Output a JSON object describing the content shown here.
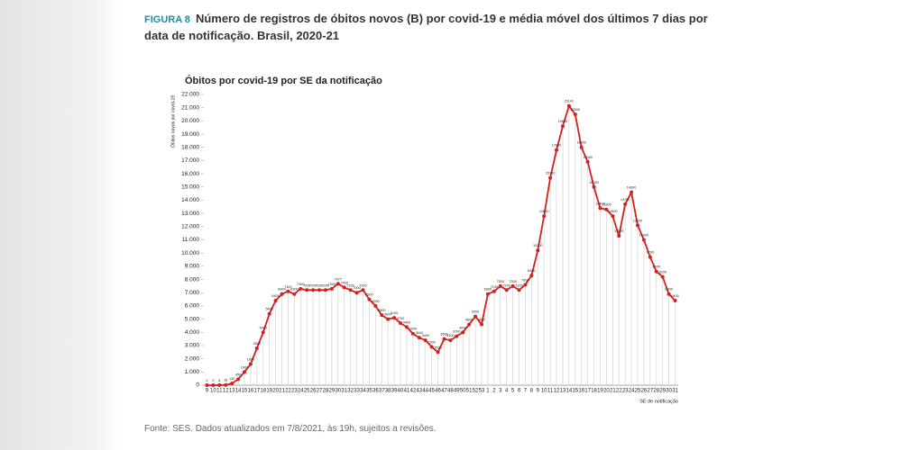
{
  "figure": {
    "label": "FIGURA 8",
    "caption": "Número de registros de óbitos novos (B) por covid-19 e média móvel dos últimos 7 dias por data de notificação. Brasil, 2020-21",
    "source": "Fonte: SES. Dados atualizados em 7/8/2021, às 19h, sujeitos a revisões."
  },
  "chart_data": {
    "type": "line",
    "title": "Óbitos por covid-19 por SE da notificação",
    "y_label": "Óbitos novos por covid-19",
    "x_label": "SE de notificação",
    "color": "#d42020",
    "grid": true,
    "categories": [
      "9",
      "10",
      "11",
      "12",
      "13",
      "14",
      "15",
      "16",
      "17",
      "18",
      "19",
      "20",
      "21",
      "22",
      "23",
      "24",
      "25",
      "26",
      "27",
      "28",
      "29",
      "30",
      "31",
      "32",
      "33",
      "34",
      "35",
      "36",
      "37",
      "38",
      "39",
      "40",
      "41",
      "42",
      "43",
      "44",
      "45",
      "46",
      "47",
      "48",
      "49",
      "50",
      "51",
      "52",
      "53",
      "1",
      "2",
      "3",
      "4",
      "5",
      "6",
      "7",
      "8",
      "9",
      "10",
      "11",
      "12",
      "13",
      "14",
      "15",
      "16",
      "17",
      "18",
      "19",
      "20",
      "21",
      "22",
      "23",
      "24",
      "25",
      "26",
      "27",
      "28",
      "29",
      "30",
      "31"
    ],
    "values": [
      0,
      0,
      6,
      18,
      130,
      450,
      1000,
      1600,
      2800,
      4000,
      5400,
      6400,
      6900,
      7100,
      6900,
      7300,
      7200,
      7200,
      7200,
      7200,
      7300,
      7677,
      7400,
      7200,
      7000,
      7200,
      6500,
      6000,
      5300,
      5000,
      5100,
      4700,
      4400,
      3900,
      3600,
      3400,
      2900,
      2500,
      3500,
      3400,
      3700,
      4000,
      4600,
      5200,
      4600,
      6900,
      7100,
      7500,
      7200,
      7500,
      7200,
      7600,
      8300,
      10200,
      12800,
      15700,
      17800,
      19600,
      21141,
      20500,
      18000,
      16900,
      15000,
      13400,
      13300,
      12800,
      11300,
      13700,
      14600,
      12100,
      11000,
      9700,
      8600,
      8200,
      6900,
      6400
    ],
    "ylim": [
      0,
      22000
    ],
    "yticks": [
      0,
      {
        "value": 1000,
        "label": "1.000"
      },
      {
        "value": 2000,
        "label": "2.000"
      },
      {
        "value": 3000,
        "label": "3.000"
      },
      {
        "value": 4000,
        "label": "4.000"
      },
      {
        "value": 5000,
        "label": "5.000"
      },
      {
        "value": 6000,
        "label": "6.000"
      },
      {
        "value": 7000,
        "label": "7.000"
      },
      {
        "value": 8000,
        "label": "8.000"
      },
      {
        "value": 9000,
        "label": "9.000"
      },
      {
        "value": 10000,
        "label": "10.000"
      },
      {
        "value": 11000,
        "label": "11.000"
      },
      {
        "value": 12000,
        "label": "12.000"
      },
      {
        "value": 13000,
        "label": "13.000"
      },
      {
        "value": 14000,
        "label": "14.000"
      },
      {
        "value": 15000,
        "label": "15.000"
      },
      {
        "value": 16000,
        "label": "16.000"
      },
      {
        "value": 17000,
        "label": "17.000"
      },
      {
        "value": 18000,
        "label": "18.000"
      },
      {
        "value": 19000,
        "label": "19.000"
      },
      {
        "value": 20000,
        "label": "20.000"
      },
      {
        "value": 21000,
        "label": "21.000"
      },
      {
        "value": 22000,
        "label": "22.000"
      }
    ]
  }
}
